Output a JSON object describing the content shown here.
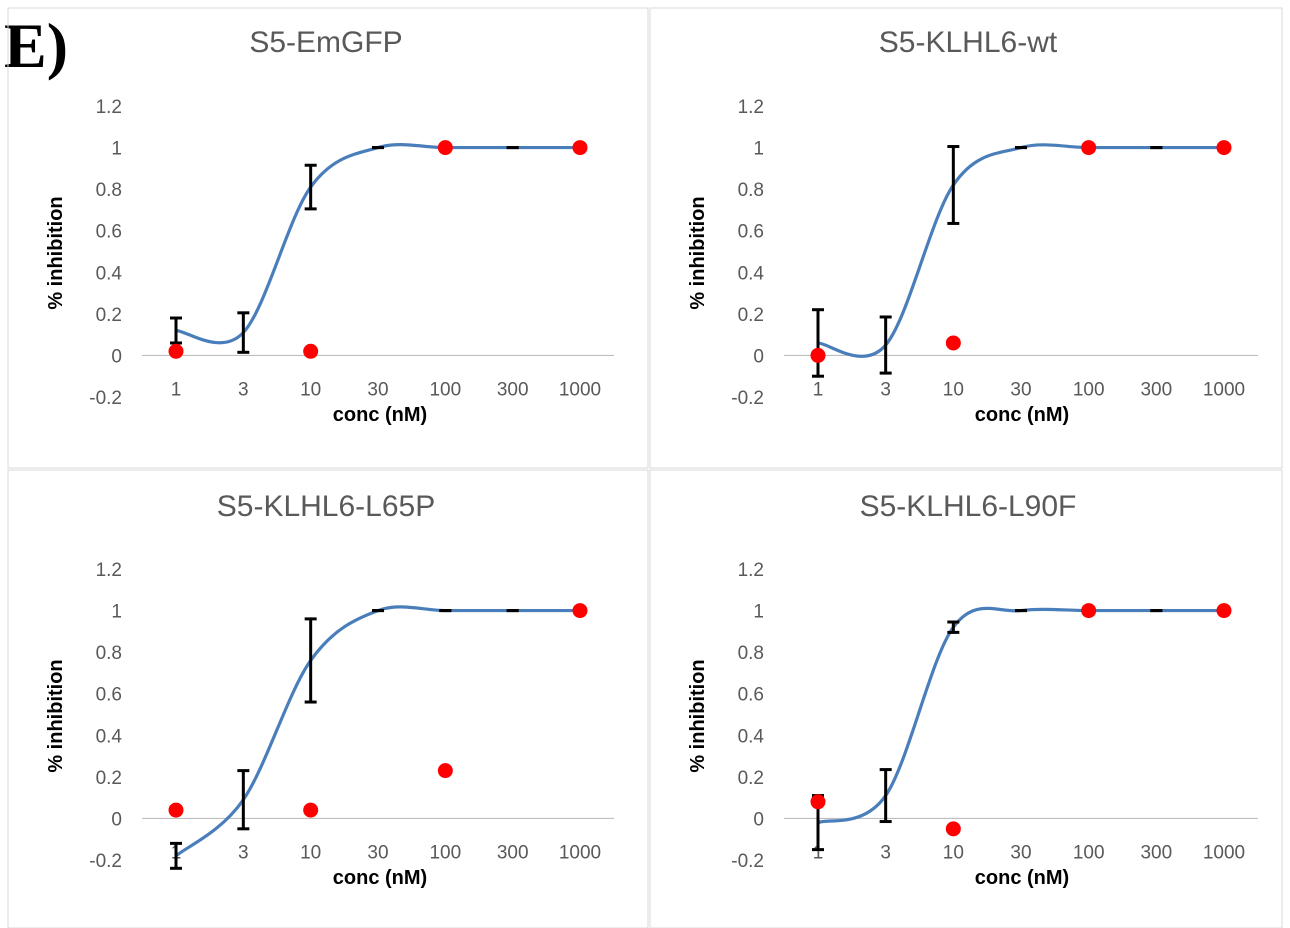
{
  "figure": {
    "panel_label": "E)",
    "colors": {
      "fit_line": "#4a7ebb",
      "points": "#ff0000",
      "error_bars": "#000000",
      "axis": "#bfbfbf",
      "title": "#595959",
      "tick_labels": "#595959",
      "axis_titles": "#000000",
      "panel_border": "#d9d9d9"
    }
  },
  "chart_data": [
    {
      "type": "scatter",
      "title": "S5-EmGFP",
      "xlabel": "conc (nM)",
      "ylabel": "% inhibition",
      "x_scale": "log",
      "x_ticks": [
        "1",
        "3",
        "10",
        "30",
        "100",
        "300",
        "1000"
      ],
      "y_ticks": [
        "1.2",
        "1",
        "0.8",
        "0.6",
        "0.4",
        "0.2",
        "0",
        "-0.2"
      ],
      "ylim": [
        -0.2,
        1.2
      ],
      "grid": false,
      "legend": "none",
      "series": [
        {
          "kind": "fit_curve",
          "x": [
            1,
            3,
            10,
            30,
            100,
            300,
            1000
          ],
          "y": [
            0.12,
            0.11,
            0.81,
            1.0,
            1.0,
            1.0,
            1.0
          ],
          "error": [
            0.06,
            0.095,
            0.105,
            0.0,
            0.0,
            0.0,
            0.0
          ]
        },
        {
          "kind": "points",
          "x": [
            1,
            10,
            100,
            1000
          ],
          "y": [
            0.02,
            0.02,
            1.0,
            1.0
          ]
        }
      ]
    },
    {
      "type": "scatter",
      "title": "S5-KLHL6-wt",
      "xlabel": "conc (nM)",
      "ylabel": "% inhibition",
      "x_scale": "log",
      "x_ticks": [
        "1",
        "3",
        "10",
        "30",
        "100",
        "300",
        "1000"
      ],
      "y_ticks": [
        "1.2",
        "1",
        "0.8",
        "0.6",
        "0.4",
        "0.2",
        "0",
        "-0.2"
      ],
      "ylim": [
        -0.2,
        1.2
      ],
      "grid": false,
      "legend": "none",
      "series": [
        {
          "kind": "fit_curve",
          "x": [
            1,
            3,
            10,
            30,
            100,
            300,
            1000
          ],
          "y": [
            0.06,
            0.05,
            0.82,
            1.0,
            1.0,
            1.0,
            1.0
          ],
          "error": [
            0.16,
            0.135,
            0.185,
            0.0,
            0.0,
            0.0,
            0.0
          ]
        },
        {
          "kind": "points",
          "x": [
            1,
            10,
            100,
            1000
          ],
          "y": [
            0.0,
            0.06,
            1.0,
            1.0
          ]
        }
      ]
    },
    {
      "type": "scatter",
      "title": "S5-KLHL6-L65P",
      "xlabel": "conc (nM)",
      "ylabel": "% inhibition",
      "x_scale": "log",
      "x_ticks": [
        "1",
        "3",
        "10",
        "30",
        "100",
        "300",
        "1000"
      ],
      "y_ticks": [
        "1.2",
        "1",
        "0.8",
        "0.6",
        "0.4",
        "0.2",
        "0",
        "-0.2"
      ],
      "ylim": [
        -0.2,
        1.2
      ],
      "grid": false,
      "legend": "none",
      "series": [
        {
          "kind": "fit_curve",
          "x": [
            1,
            3,
            10,
            30,
            100,
            300,
            1000
          ],
          "y": [
            -0.18,
            0.09,
            0.76,
            1.0,
            1.0,
            1.0,
            1.0
          ],
          "error": [
            0.06,
            0.14,
            0.2,
            0.0,
            0.0,
            0.0,
            0.0
          ]
        },
        {
          "kind": "points",
          "x": [
            1,
            10,
            100,
            1000
          ],
          "y": [
            0.04,
            0.04,
            0.23,
            1.0
          ]
        }
      ]
    },
    {
      "type": "scatter",
      "title": "S5-KLHL6-L90F",
      "xlabel": "conc (nM)",
      "ylabel": "% inhibition",
      "x_scale": "log",
      "x_ticks": [
        "1",
        "3",
        "10",
        "30",
        "100",
        "300",
        "1000"
      ],
      "y_ticks": [
        "1.2",
        "1",
        "0.8",
        "0.6",
        "0.4",
        "0.2",
        "0",
        "-0.2"
      ],
      "ylim": [
        -0.2,
        1.2
      ],
      "grid": false,
      "legend": "none",
      "series": [
        {
          "kind": "fit_curve",
          "x": [
            1,
            3,
            10,
            30,
            100,
            300,
            1000
          ],
          "y": [
            -0.02,
            0.11,
            0.92,
            1.0,
            1.0,
            1.0,
            1.0
          ],
          "error": [
            0.13,
            0.125,
            0.025,
            0.0,
            0.0,
            0.0,
            0.0
          ]
        },
        {
          "kind": "points",
          "x": [
            1,
            10,
            100,
            1000
          ],
          "y": [
            0.08,
            -0.05,
            1.0,
            1.0
          ]
        }
      ]
    }
  ]
}
